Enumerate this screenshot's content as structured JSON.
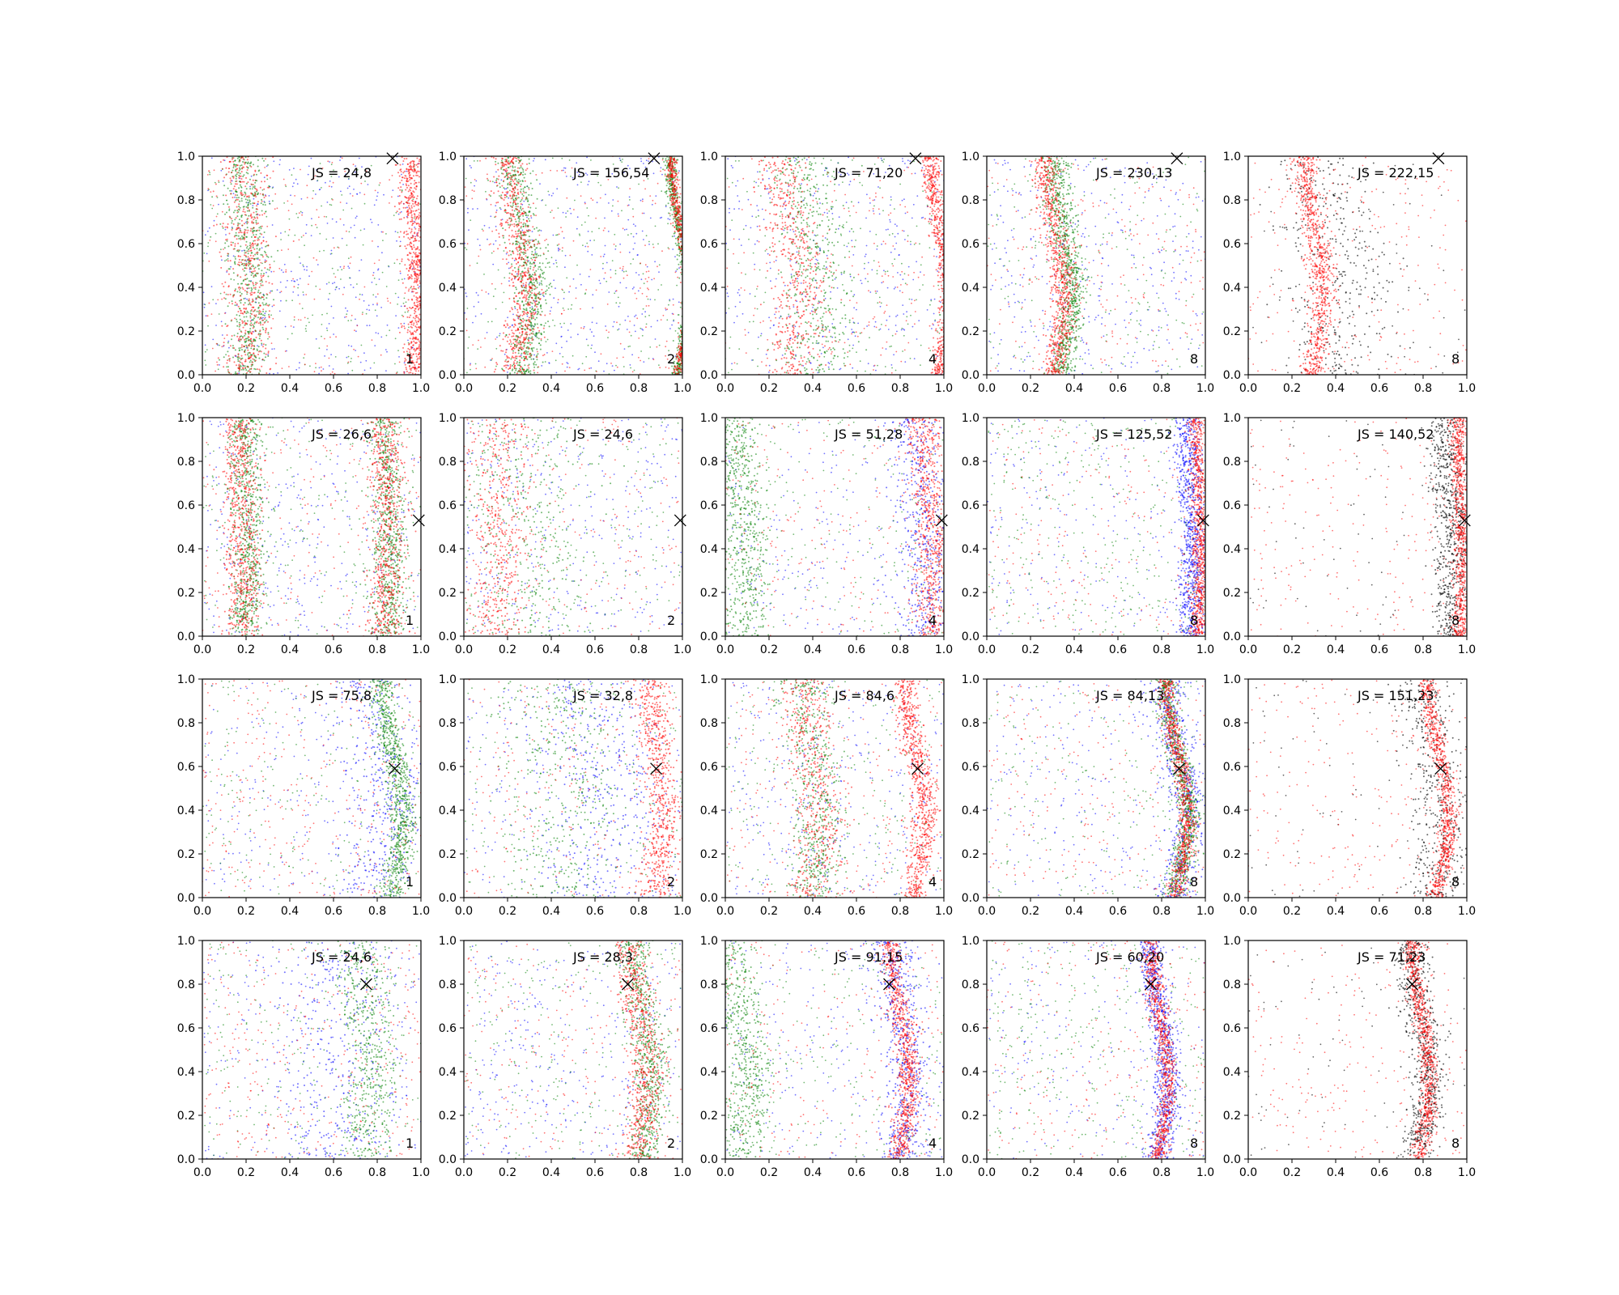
{
  "chart_data": {
    "type": "scatter",
    "layout": {
      "rows": 4,
      "cols": 5
    },
    "xlim": [
      0,
      1
    ],
    "ylim": [
      0,
      1
    ],
    "x_ticks": [
      "0.0",
      "0.2",
      "0.4",
      "0.6",
      "0.8",
      "1.0"
    ],
    "y_ticks": [
      "0.0",
      "0.2",
      "0.4",
      "0.6",
      "0.8",
      "1.0"
    ],
    "grid": false,
    "series_colors": {
      "blue": "#0000ff",
      "green": "#008000",
      "red": "#ff0000",
      "black": "#000000"
    },
    "panels": [
      {
        "js": "JS = 24,8",
        "idx": "1",
        "marker": [
          0.87,
          0.99
        ],
        "colors": [
          "blue",
          "green",
          "red"
        ],
        "bands": {
          "green": [
            [
              0.2,
              0.05
            ]
          ],
          "red": [
            [
              0.2,
              0.06
            ],
            [
              0.97,
              0.03
            ]
          ]
        },
        "curve": 0.02
      },
      {
        "js": "JS = 156,54",
        "idx": "2",
        "marker": [
          0.87,
          0.99
        ],
        "colors": [
          "blue",
          "green",
          "red"
        ],
        "bands": {
          "green": [
            [
              0.27,
              0.04
            ],
            [
              0.985,
              0.015
            ]
          ],
          "red": [
            [
              0.24,
              0.04
            ],
            [
              0.99,
              0.012
            ]
          ]
        },
        "curve": 0.04
      },
      {
        "js": "JS = 71,20",
        "idx": "4",
        "marker": [
          0.87,
          0.99
        ],
        "colors": [
          "blue",
          "green",
          "red"
        ],
        "bands": {
          "green": [
            [
              0.4,
              0.08
            ]
          ],
          "red": [
            [
              0.3,
              0.06
            ],
            [
              0.98,
              0.02
            ]
          ]
        },
        "curve": 0.04
      },
      {
        "js": "JS = 230,13",
        "idx": "8",
        "marker": [
          0.87,
          0.99
        ],
        "colors": [
          "blue",
          "green",
          "red"
        ],
        "bands": {
          "green": [
            [
              0.35,
              0.03
            ]
          ],
          "red": [
            [
              0.31,
              0.03
            ]
          ]
        },
        "curve": 0.04
      },
      {
        "js": "JS = 222,15",
        "idx": "8",
        "marker": [
          0.87,
          0.99
        ],
        "colors": [
          "black",
          "red"
        ],
        "bands": {
          "black": [
            [
              0.4,
              0.12
            ]
          ],
          "red": [
            [
              0.3,
              0.03
            ]
          ]
        },
        "curve": 0.04
      },
      {
        "js": "JS = 26,6",
        "idx": "1",
        "marker": [
          0.99,
          0.53
        ],
        "colors": [
          "blue",
          "green",
          "red"
        ],
        "bands": {
          "green": [
            [
              0.2,
              0.04
            ],
            [
              0.85,
              0.04
            ]
          ],
          "red": [
            [
              0.18,
              0.04
            ],
            [
              0.84,
              0.04
            ]
          ]
        },
        "curve": 0.01
      },
      {
        "js": "JS = 24,6",
        "idx": "2",
        "marker": [
          0.99,
          0.53
        ],
        "colors": [
          "blue",
          "green",
          "red"
        ],
        "bands": {
          "green": [
            [
              0.3,
              0.15
            ]
          ],
          "red": [
            [
              0.15,
              0.07
            ]
          ]
        },
        "curve": 0.01
      },
      {
        "js": "JS = 51,28",
        "idx": "4",
        "marker": [
          0.99,
          0.53
        ],
        "colors": [
          "blue",
          "green",
          "red"
        ],
        "bands": {
          "blue": [
            [
              0.9,
              0.07
            ]
          ],
          "green": [
            [
              0.08,
              0.05
            ]
          ],
          "red": [
            [
              0.93,
              0.04
            ]
          ]
        },
        "curve": 0.02
      },
      {
        "js": "JS = 125,52",
        "idx": "8",
        "marker": [
          0.99,
          0.53
        ],
        "colors": [
          "blue",
          "green",
          "red"
        ],
        "bands": {
          "blue": [
            [
              0.93,
              0.03
            ]
          ],
          "red": [
            [
              0.97,
              0.02
            ]
          ]
        },
        "curve": 0.01
      },
      {
        "js": "JS = 140,52",
        "idx": "8",
        "marker": [
          0.99,
          0.53
        ],
        "colors": [
          "black",
          "red"
        ],
        "bands": {
          "black": [
            [
              0.92,
              0.04
            ]
          ],
          "red": [
            [
              0.97,
              0.02
            ]
          ]
        },
        "curve": 0.01
      },
      {
        "js": "JS = 75,8",
        "idx": "1",
        "marker": [
          0.88,
          0.59
        ],
        "colors": [
          "blue",
          "green",
          "red"
        ],
        "bands": {
          "blue": [
            [
              0.8,
              0.1
            ]
          ],
          "green": [
            [
              0.87,
              0.03
            ]
          ]
        },
        "curve": 0.05
      },
      {
        "js": "JS = 32,8",
        "idx": "2",
        "marker": [
          0.88,
          0.59
        ],
        "colors": [
          "blue",
          "green",
          "red"
        ],
        "bands": {
          "blue": [
            [
              0.6,
              0.15
            ]
          ],
          "green": [
            [
              0.45,
              0.15
            ]
          ],
          "red": [
            [
              0.88,
              0.04
            ]
          ]
        },
        "curve": 0.03
      },
      {
        "js": "JS = 84,6",
        "idx": "4",
        "marker": [
          0.88,
          0.59
        ],
        "colors": [
          "blue",
          "green",
          "red"
        ],
        "bands": {
          "green": [
            [
              0.4,
              0.06
            ]
          ],
          "red": [
            [
              0.4,
              0.06
            ],
            [
              0.87,
              0.03
            ]
          ]
        },
        "curve": 0.04
      },
      {
        "js": "JS = 84,13",
        "idx": "8",
        "marker": [
          0.88,
          0.59
        ],
        "colors": [
          "blue",
          "green",
          "red"
        ],
        "bands": {
          "blue": [
            [
              0.87,
              0.05
            ]
          ],
          "green": [
            [
              0.87,
              0.025
            ]
          ],
          "red": [
            [
              0.87,
              0.02
            ]
          ]
        },
        "curve": 0.05
      },
      {
        "js": "JS = 151,23",
        "idx": "8",
        "marker": [
          0.88,
          0.59
        ],
        "colors": [
          "black",
          "red"
        ],
        "bands": {
          "black": [
            [
              0.84,
              0.07
            ]
          ],
          "red": [
            [
              0.87,
              0.02
            ]
          ]
        },
        "curve": 0.05
      },
      {
        "js": "JS = 24,6",
        "idx": "1",
        "marker": [
          0.75,
          0.8
        ],
        "colors": [
          "blue",
          "green",
          "red"
        ],
        "bands": {
          "blue": [
            [
              0.6,
              0.15
            ]
          ],
          "green": [
            [
              0.75,
              0.06
            ]
          ]
        },
        "curve": 0.02
      },
      {
        "js": "JS = 28,3",
        "idx": "2",
        "marker": [
          0.75,
          0.8
        ],
        "colors": [
          "blue",
          "green",
          "red"
        ],
        "bands": {
          "green": [
            [
              0.82,
              0.04
            ]
          ],
          "red": [
            [
              0.8,
              0.04
            ]
          ]
        },
        "curve": 0.04
      },
      {
        "js": "JS = 91,15",
        "idx": "4",
        "marker": [
          0.75,
          0.8
        ],
        "colors": [
          "blue",
          "green",
          "red"
        ],
        "bands": {
          "blue": [
            [
              0.8,
              0.05
            ]
          ],
          "green": [
            [
              0.07,
              0.05
            ]
          ],
          "red": [
            [
              0.8,
              0.025
            ]
          ]
        },
        "curve": 0.04
      },
      {
        "js": "JS = 60,20",
        "idx": "8",
        "marker": [
          0.75,
          0.8
        ],
        "colors": [
          "blue",
          "green",
          "red"
        ],
        "bands": {
          "blue": [
            [
              0.79,
              0.03
            ]
          ],
          "red": [
            [
              0.79,
              0.02
            ]
          ]
        },
        "curve": 0.04
      },
      {
        "js": "JS = 71,23",
        "idx": "8",
        "marker": [
          0.75,
          0.8
        ],
        "colors": [
          "black",
          "red"
        ],
        "bands": {
          "black": [
            [
              0.78,
              0.04
            ]
          ],
          "red": [
            [
              0.79,
              0.02
            ]
          ]
        },
        "curve": 0.04
      }
    ]
  }
}
